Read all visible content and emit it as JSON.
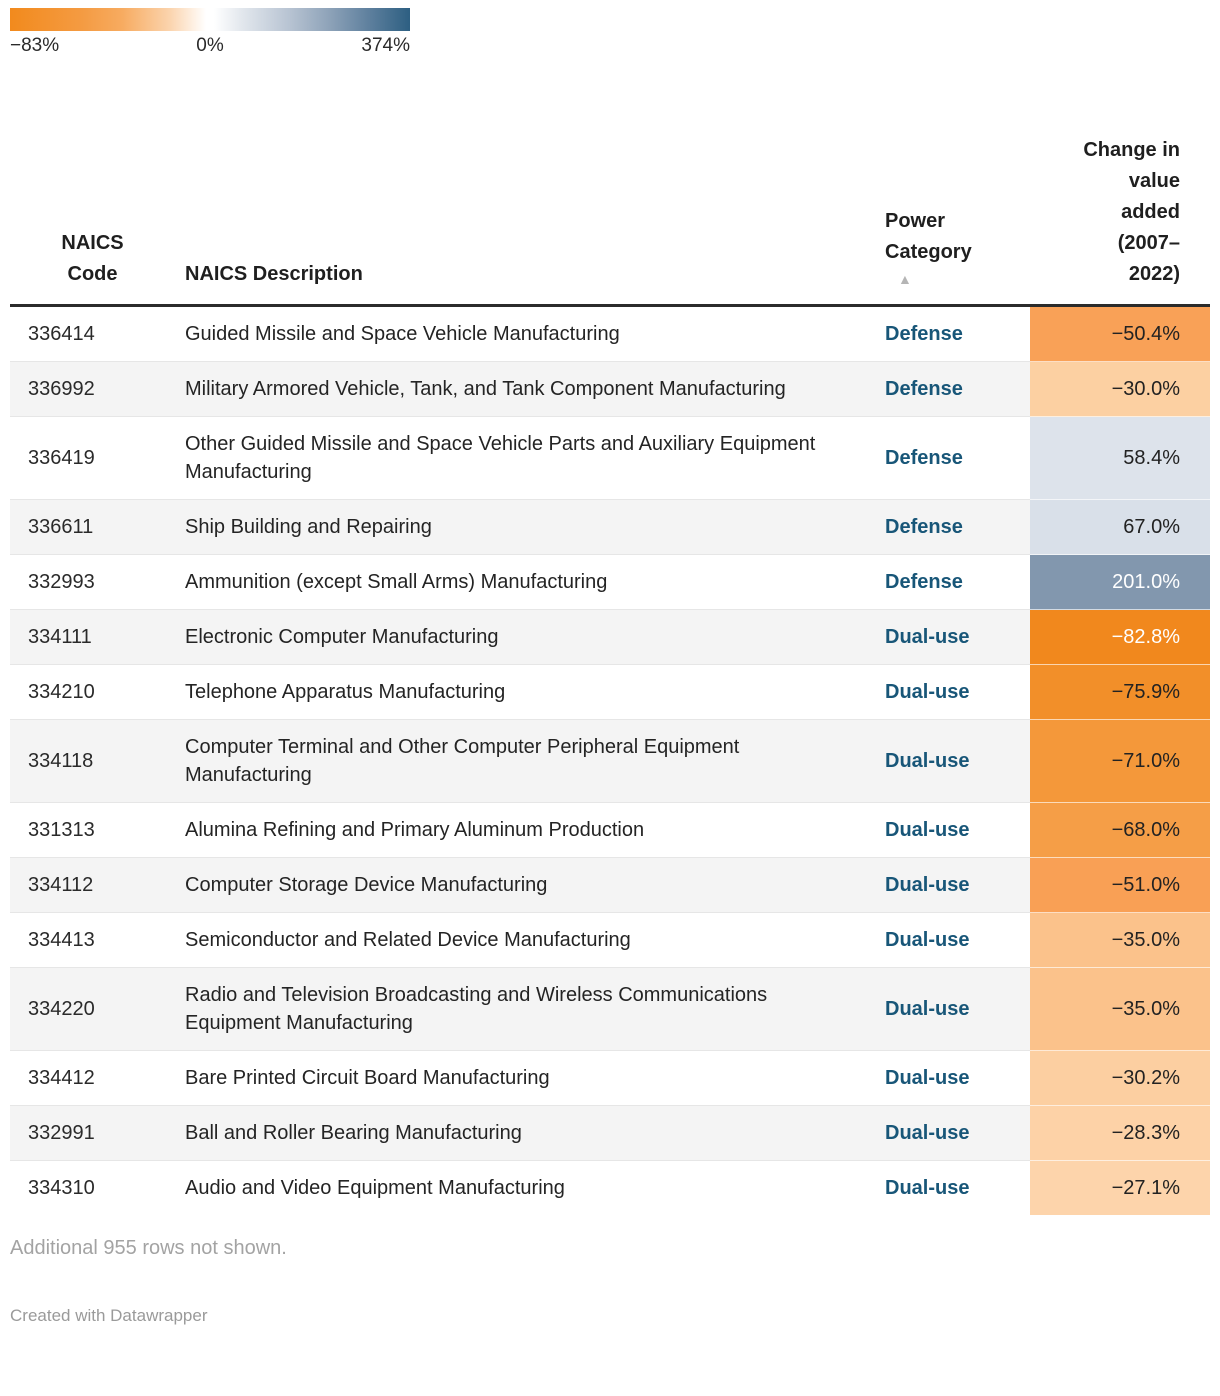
{
  "legend": {
    "min_label": "−83%",
    "zero_label": "0%",
    "max_label": "374%",
    "gradient_start_color": "#f28a1d",
    "gradient_mid_color": "#ffffff",
    "gradient_end_color": "#2d5f82"
  },
  "table": {
    "columns": {
      "code": "NAICS Code",
      "description": "NAICS Description",
      "category": "Power Category",
      "change": "Change in value added (2007–2022)"
    },
    "sort_indicator": "▲",
    "category_text_color": "#185678",
    "rows": [
      {
        "code": "336414",
        "description": "Guided Missile and Space Vehicle Manufacturing",
        "category": "Defense",
        "change": "−50.4%",
        "value_bg": "#f9a157",
        "value_fg": "#222222"
      },
      {
        "code": "336992",
        "description": "Military Armored Vehicle, Tank, and Tank Component Manufacturing",
        "category": "Defense",
        "change": "−30.0%",
        "value_bg": "#fcd0a2",
        "value_fg": "#222222"
      },
      {
        "code": "336419",
        "description": "Other Guided Missile and Space Vehicle Parts and Auxiliary Equipment Manufacturing",
        "category": "Defense",
        "change": "58.4%",
        "value_bg": "#dde3eb",
        "value_fg": "#222222"
      },
      {
        "code": "336611",
        "description": "Ship Building and Repairing",
        "category": "Defense",
        "change": "67.0%",
        "value_bg": "#d9e0e9",
        "value_fg": "#222222"
      },
      {
        "code": "332993",
        "description": "Ammunition (except Small Arms) Manufacturing",
        "category": "Defense",
        "change": "201.0%",
        "value_bg": "#8297ae",
        "value_fg": "#ffffff"
      },
      {
        "code": "334111",
        "description": "Electronic Computer Manufacturing",
        "category": "Dual-use",
        "change": "−82.8%",
        "value_bg": "#f1881d",
        "value_fg": "#ffffff"
      },
      {
        "code": "334210",
        "description": "Telephone Apparatus Manufacturing",
        "category": "Dual-use",
        "change": "−75.9%",
        "value_bg": "#f28f29",
        "value_fg": "#222222"
      },
      {
        "code": "334118",
        "description": "Computer Terminal and Other Computer Peripheral Equipment Manufacturing",
        "category": "Dual-use",
        "change": "−71.0%",
        "value_bg": "#f4983a",
        "value_fg": "#222222"
      },
      {
        "code": "331313",
        "description": "Alumina Refining and Primary Aluminum Production",
        "category": "Dual-use",
        "change": "−68.0%",
        "value_bg": "#f59e47",
        "value_fg": "#222222"
      },
      {
        "code": "334112",
        "description": "Computer Storage Device Manufacturing",
        "category": "Dual-use",
        "change": "−51.0%",
        "value_bg": "#f9a055",
        "value_fg": "#222222"
      },
      {
        "code": "334413",
        "description": "Semiconductor and Related Device Manufacturing",
        "category": "Dual-use",
        "change": "−35.0%",
        "value_bg": "#fbc28b",
        "value_fg": "#222222"
      },
      {
        "code": "334220",
        "description": "Radio and Television Broadcasting and Wireless Communications Equipment Manufacturing",
        "category": "Dual-use",
        "change": "−35.0%",
        "value_bg": "#fbc28b",
        "value_fg": "#222222"
      },
      {
        "code": "334412",
        "description": "Bare Printed Circuit Board Manufacturing",
        "category": "Dual-use",
        "change": "−30.2%",
        "value_bg": "#fccfa1",
        "value_fg": "#222222"
      },
      {
        "code": "332991",
        "description": "Ball and Roller Bearing Manufacturing",
        "category": "Dual-use",
        "change": "−28.3%",
        "value_bg": "#fdd2a7",
        "value_fg": "#222222"
      },
      {
        "code": "334310",
        "description": "Audio and Video Equipment Manufacturing",
        "category": "Dual-use",
        "change": "−27.1%",
        "value_bg": "#fdd4ab",
        "value_fg": "#222222"
      }
    ]
  },
  "footer": {
    "note": "Additional 955 rows not shown.",
    "attribution": "Created with Datawrapper"
  },
  "chart_data": {
    "type": "table",
    "title": "",
    "legend": {
      "scale_min": -83,
      "scale_mid": 0,
      "scale_max": 374,
      "unit": "%"
    },
    "columns": [
      "NAICS Code",
      "NAICS Description",
      "Power Category",
      "Change in value added (2007–2022)"
    ],
    "rows": [
      [
        "336414",
        "Guided Missile and Space Vehicle Manufacturing",
        "Defense",
        -50.4
      ],
      [
        "336992",
        "Military Armored Vehicle, Tank, and Tank Component Manufacturing",
        "Defense",
        -30.0
      ],
      [
        "336419",
        "Other Guided Missile and Space Vehicle Parts and Auxiliary Equipment Manufacturing",
        "Defense",
        58.4
      ],
      [
        "336611",
        "Ship Building and Repairing",
        "Defense",
        67.0
      ],
      [
        "332993",
        "Ammunition (except Small Arms) Manufacturing",
        "Defense",
        201.0
      ],
      [
        "334111",
        "Electronic Computer Manufacturing",
        "Dual-use",
        -82.8
      ],
      [
        "334210",
        "Telephone Apparatus Manufacturing",
        "Dual-use",
        -75.9
      ],
      [
        "334118",
        "Computer Terminal and Other Computer Peripheral Equipment Manufacturing",
        "Dual-use",
        -71.0
      ],
      [
        "331313",
        "Alumina Refining and Primary Aluminum Production",
        "Dual-use",
        -68.0
      ],
      [
        "334112",
        "Computer Storage Device Manufacturing",
        "Dual-use",
        -51.0
      ],
      [
        "334413",
        "Semiconductor and Related Device Manufacturing",
        "Dual-use",
        -35.0
      ],
      [
        "334220",
        "Radio and Television Broadcasting and Wireless Communications Equipment Manufacturing",
        "Dual-use",
        -35.0
      ],
      [
        "334412",
        "Bare Printed Circuit Board Manufacturing",
        "Dual-use",
        -30.2
      ],
      [
        "332991",
        "Ball and Roller Bearing Manufacturing",
        "Dual-use",
        -28.3
      ],
      [
        "334310",
        "Audio and Video Equipment Manufacturing",
        "Dual-use",
        -27.1
      ]
    ]
  }
}
